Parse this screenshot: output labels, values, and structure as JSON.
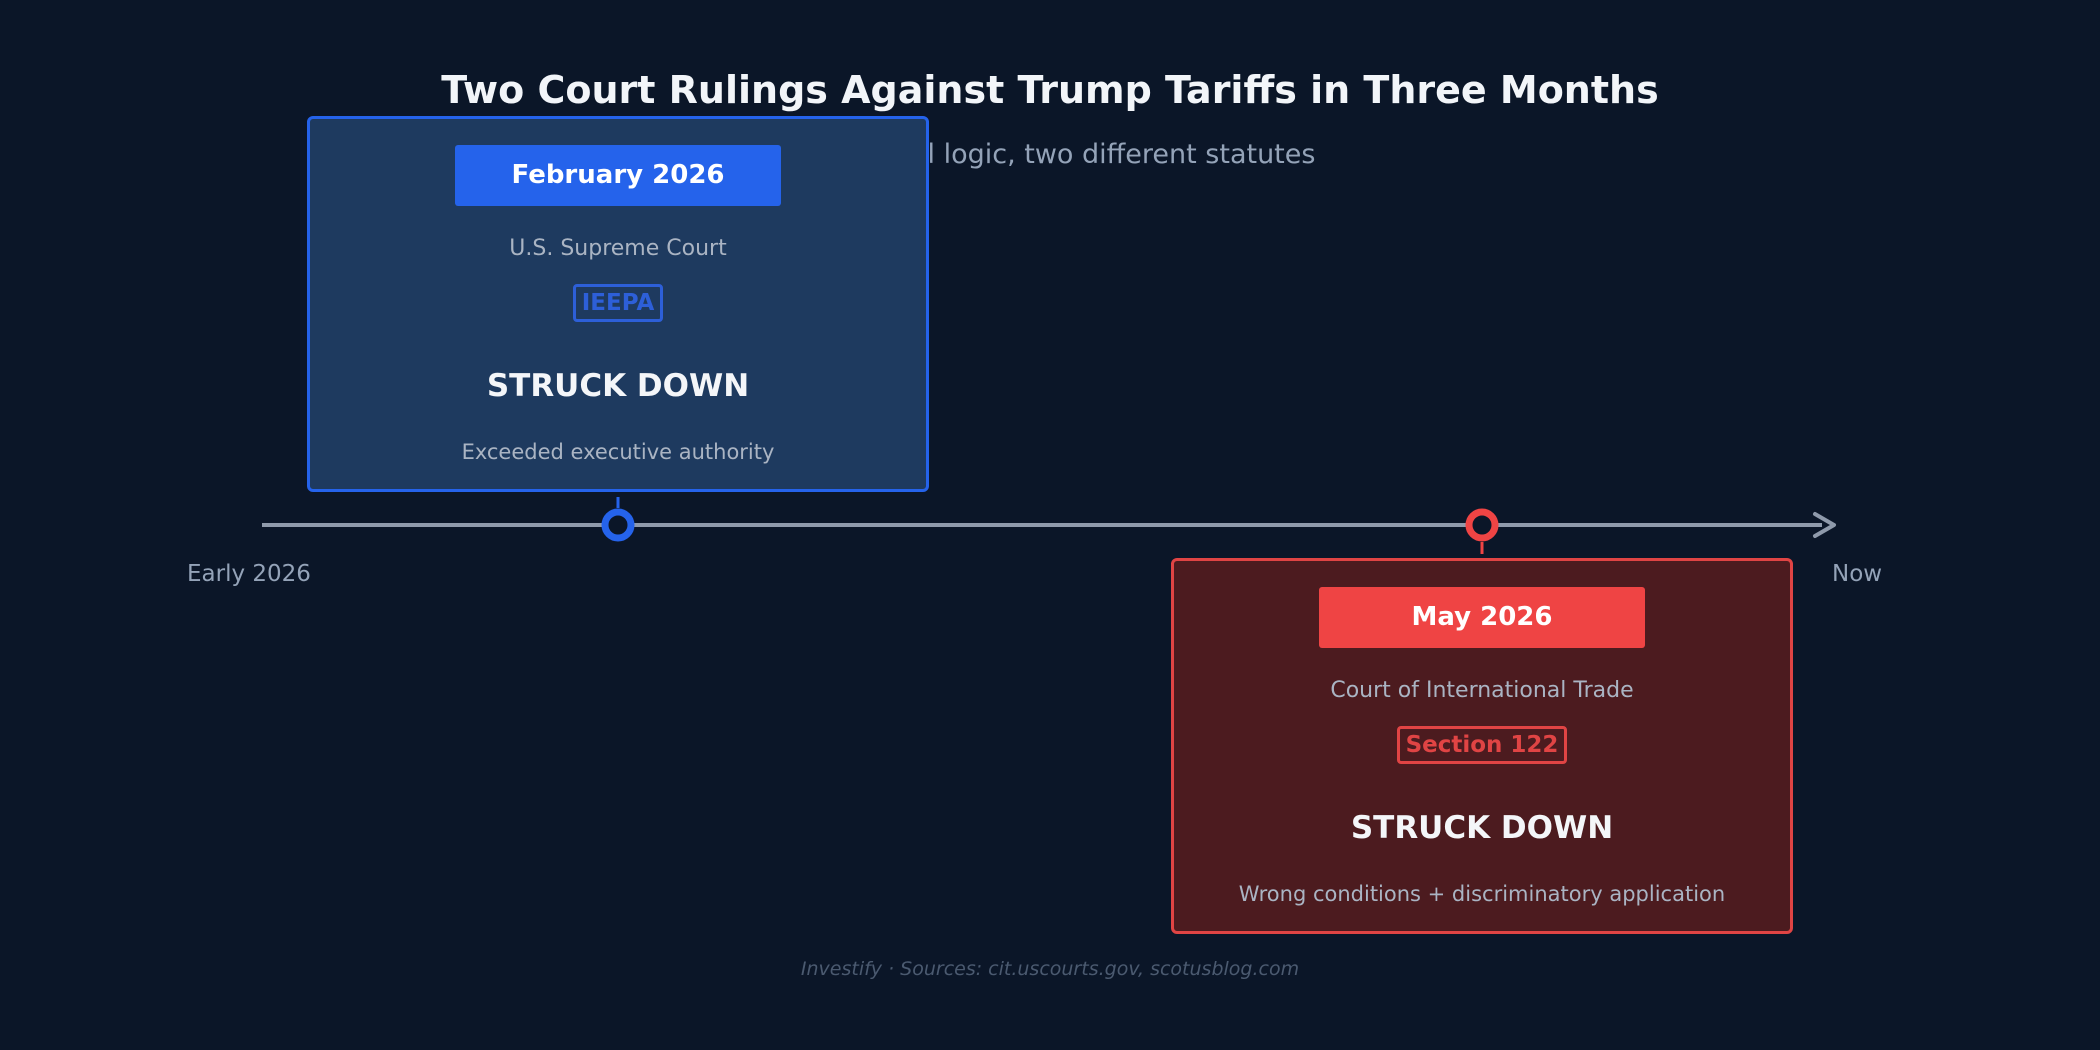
{
  "title": "Two Court Rulings Against Trump Tariffs in Three Months",
  "subtitle": "Same legal logic, two different statutes",
  "timeline": {
    "start_label": "Early 2026",
    "end_label": "Now"
  },
  "events": [
    {
      "date": "February 2026",
      "court": "U.S. Supreme Court",
      "statute": "IEEPA",
      "verdict": "STRUCK DOWN",
      "reason": "Exceeded executive authority",
      "color": "#2563eb"
    },
    {
      "date": "May 2026",
      "court": "Court of International Trade",
      "statute": "Section 122",
      "verdict": "STRUCK DOWN",
      "reason": "Wrong conditions + discriminatory application",
      "color": "#ef4444"
    }
  ],
  "footer": "Investify · Sources: cit.uscourts.gov, scotusblog.com",
  "colors": {
    "background": "#0b1628",
    "axis": "#8f9aab",
    "blue": "#2563eb",
    "red": "#ef4444"
  }
}
